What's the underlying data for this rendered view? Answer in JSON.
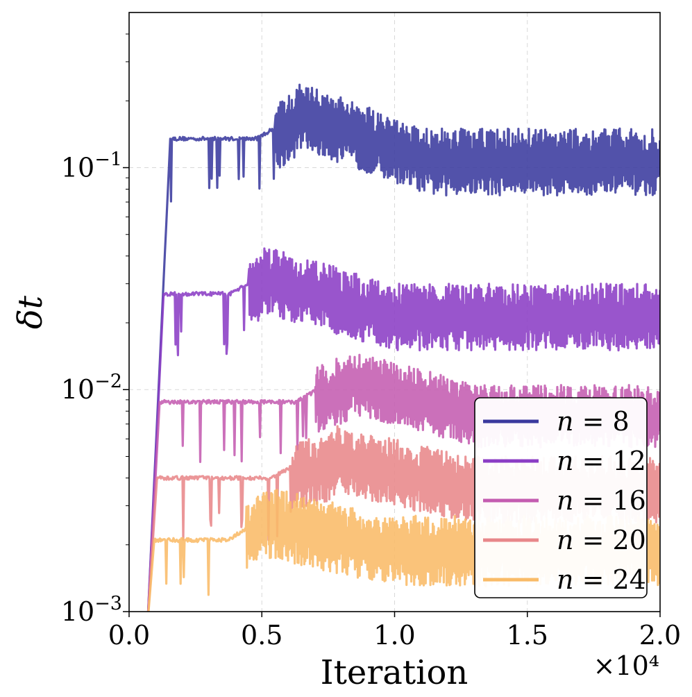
{
  "chart_data": {
    "type": "line",
    "title": "",
    "xlabel": "Iteration",
    "ylabel": "δt",
    "x_scale_label": "×10⁴",
    "x_multiplier": 10000,
    "xlim": [
      0,
      20000
    ],
    "ylim": [
      0.001,
      0.5
    ],
    "yscale": "log",
    "grid": true,
    "legend_position": "lower-right",
    "x_ticks": [
      0,
      5000,
      10000,
      15000,
      20000
    ],
    "x_tick_labels": [
      "0.0",
      "0.5",
      "1.0",
      "1.5",
      "2.0"
    ],
    "y_ticks": [
      0.001,
      0.01,
      0.1
    ],
    "y_tick_labels": [
      "10",
      "10",
      "10"
    ],
    "y_tick_exponents": [
      "−3",
      "−2",
      "−1"
    ],
    "series": [
      {
        "name": "n = 8",
        "legend_var": "n",
        "legend_value": "8",
        "color": "#3a3a9e",
        "ramp_start": 700,
        "ramp_end": 1550,
        "plateau": 0.135,
        "plateau_end": 5500,
        "peak_iter": 6400,
        "peak_value": 0.23,
        "final_median": 0.105,
        "osc_lo": 0.075,
        "osc_hi": 0.15
      },
      {
        "name": "n = 12",
        "legend_var": "n",
        "legend_value": "12",
        "color": "#8b3ec5",
        "ramp_start": 700,
        "ramp_end": 1300,
        "plateau": 0.027,
        "plateau_end": 4500,
        "peak_iter": 5000,
        "peak_value": 0.042,
        "final_median": 0.021,
        "osc_lo": 0.015,
        "osc_hi": 0.03
      },
      {
        "name": "n = 16",
        "legend_var": "n",
        "legend_value": "16",
        "color": "#c45cb0",
        "ramp_start": 700,
        "ramp_end": 1150,
        "plateau": 0.0088,
        "plateau_end": 7000,
        "peak_iter": 8200,
        "peak_value": 0.0145,
        "final_median": 0.0075,
        "osc_lo": 0.0055,
        "osc_hi": 0.0105
      },
      {
        "name": "n = 20",
        "legend_var": "n",
        "legend_value": "20",
        "color": "#e8878a",
        "ramp_start": 700,
        "ramp_end": 1050,
        "plateau": 0.004,
        "plateau_end": 6100,
        "peak_iter": 7800,
        "peak_value": 0.0065,
        "final_median": 0.0035,
        "osc_lo": 0.0025,
        "osc_hi": 0.005
      },
      {
        "name": "n = 24",
        "legend_var": "n",
        "legend_value": "24",
        "color": "#f9bb68",
        "ramp_start": 700,
        "ramp_end": 950,
        "plateau": 0.0021,
        "plateau_end": 4400,
        "peak_iter": 5000,
        "peak_value": 0.0035,
        "final_median": 0.0019,
        "osc_lo": 0.0013,
        "osc_hi": 0.0027
      }
    ]
  }
}
